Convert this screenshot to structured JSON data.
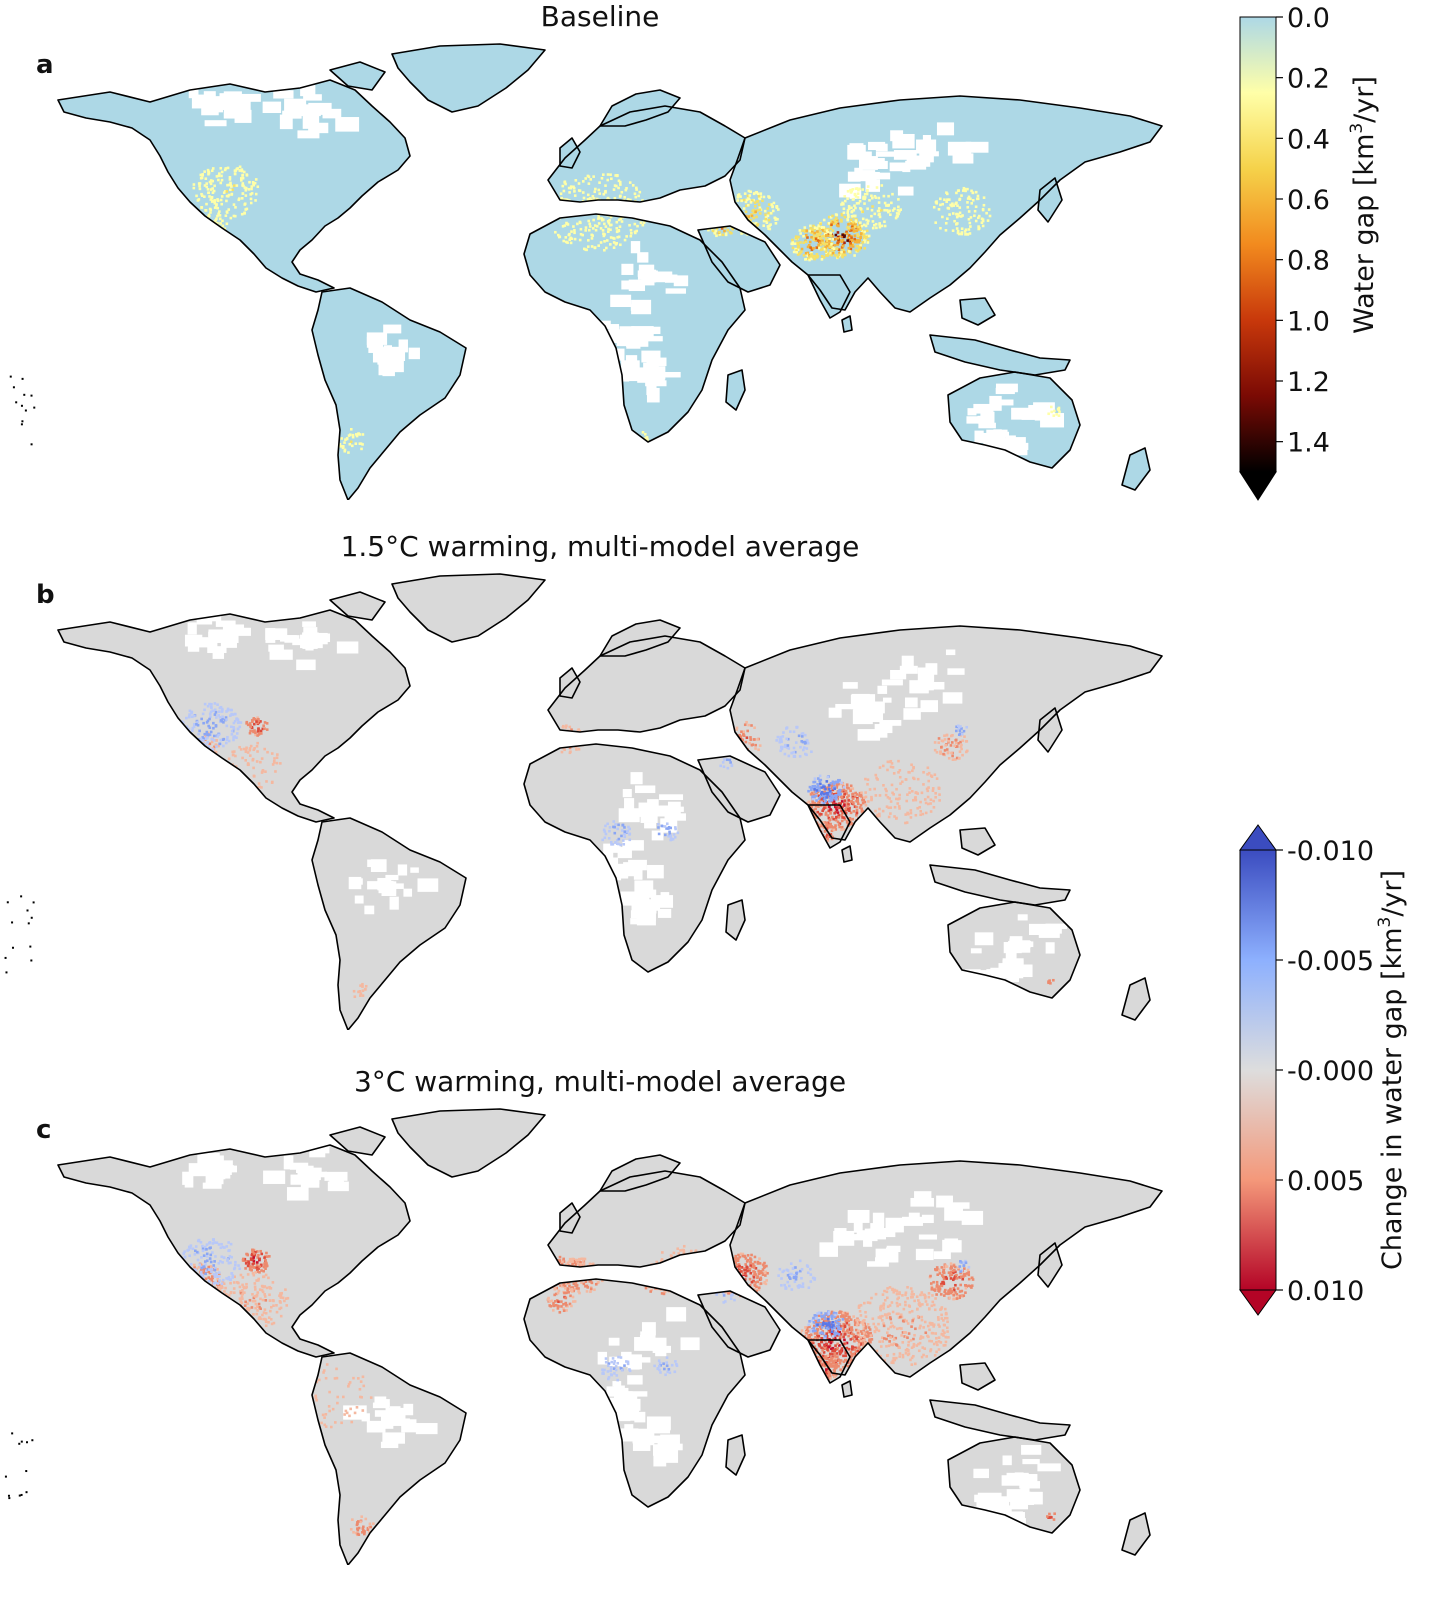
{
  "panels": [
    {
      "letter": "a",
      "title": "Baseline",
      "kind": "baseline"
    },
    {
      "letter": "b",
      "title": "1.5°C warming, multi-model average",
      "kind": "change15"
    },
    {
      "letter": "c",
      "title": "3°C warming, multi-model average",
      "kind": "change30"
    }
  ],
  "colorbar_baseline": {
    "label_main": "Water gap [km",
    "label_sup": "3",
    "label_tail": "/yr]",
    "ticks": [
      "0.0",
      "0.2",
      "0.4",
      "0.6",
      "0.8",
      "1.0",
      "1.2",
      "1.4"
    ],
    "range": [
      0,
      1.5
    ],
    "extend": "max",
    "colors": [
      "#add8e6",
      "#ffffa8",
      "#f5d24a",
      "#f28a1e",
      "#c8380b",
      "#7a0a04",
      "#000000"
    ]
  },
  "colorbar_change": {
    "label_main": "Change in water gap [km",
    "label_sup": "3",
    "label_tail": "/yr]",
    "ticks": [
      "-0.010",
      "-0.005",
      "-0.000",
      "0.005",
      "0.010"
    ],
    "range": [
      -0.01,
      0.01
    ],
    "extend": "both",
    "colors": [
      "#3b4cc0",
      "#8db0fe",
      "#dddddd",
      "#f4987a",
      "#b40426"
    ]
  },
  "map_colors": {
    "baseline_land": "#add8e6",
    "change_land": "#d9d9d9",
    "coast": "#000000",
    "increase": "#c8102e",
    "decrease": "#4060e0"
  }
}
